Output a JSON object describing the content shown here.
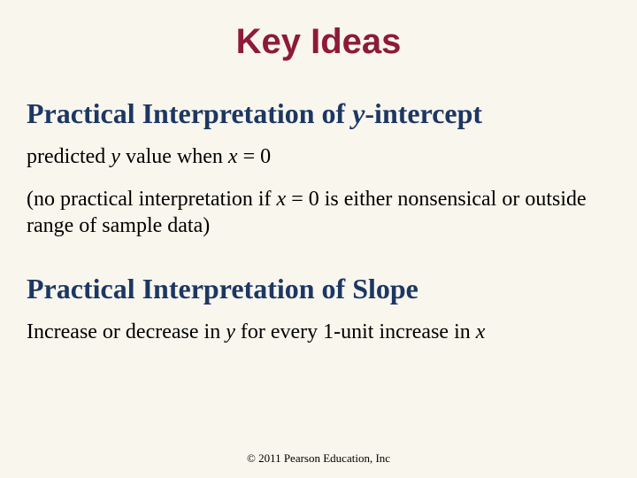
{
  "title_text": "Key Ideas",
  "title_color": "#8d1b36",
  "title_fontsize": 40,
  "subheading1_prefix": "Practical Interpretation of ",
  "subheading1_italic": "y",
  "subheading1_suffix": "-intercept",
  "subheading_color": "#1c3763",
  "subheading_fontsize": 32,
  "body1_part1": "predicted ",
  "body1_y": "y",
  "body1_part2": " value when ",
  "body1_x": "x",
  "body1_part3": " = 0",
  "body2_part1": "(no practical interpretation if ",
  "body2_x": "x",
  "body2_part2": " = 0 is either nonsensical or outside range of sample data)",
  "subheading2_text": "Practical Interpretation of Slope",
  "body3_part1": "Increase or decrease in ",
  "body3_y": "y",
  "body3_part2": " for every 1-unit increase in ",
  "body3_x": "x",
  "footer_text": "© 2011 Pearson Education, Inc",
  "body_fontsize": 24,
  "body_color": "#000000",
  "background_color": "#f9f6ed",
  "footer_fontsize": 13
}
